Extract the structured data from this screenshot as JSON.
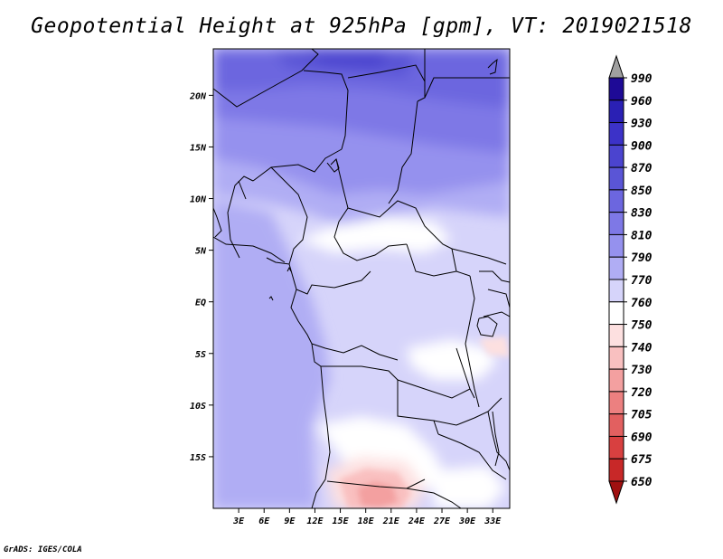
{
  "title": "Geopotential Height at 925hPa [gpm], VT: 2019021518",
  "credit": "GrADS: IGES/COLA",
  "map": {
    "lon_ticks": [
      "3E",
      "6E",
      "9E",
      "12E",
      "15E",
      "18E",
      "21E",
      "24E",
      "27E",
      "30E",
      "33E"
    ],
    "lon_values": [
      3,
      6,
      9,
      12,
      15,
      18,
      21,
      24,
      27,
      30,
      33
    ],
    "lat_ticks": [
      "20N",
      "15N",
      "10N",
      "5N",
      "EQ",
      "5S",
      "10S",
      "15S"
    ],
    "lat_values": [
      20,
      15,
      10,
      5,
      0,
      -5,
      -10,
      -15
    ],
    "lon_range": [
      0,
      35
    ],
    "lat_range": [
      -20,
      24.5
    ]
  },
  "colorbar": {
    "labels": [
      "990",
      "960",
      "930",
      "900",
      "870",
      "850",
      "830",
      "810",
      "790",
      "770",
      "760",
      "750",
      "740",
      "730",
      "720",
      "705",
      "690",
      "675",
      "650"
    ],
    "colors": [
      "#1e0a96",
      "#2a20b4",
      "#3c32c8",
      "#4b44cf",
      "#5a55d6",
      "#6c66df",
      "#7e78e6",
      "#9591ee",
      "#b0adf4",
      "#d6d4fa",
      "#ffffff",
      "#fde0e0",
      "#f9c0c0",
      "#f3a0a0",
      "#ec8080",
      "#e26060",
      "#d84040",
      "#c82828",
      "#b41414"
    ],
    "top_color": "#a0a0a0",
    "bottom_color": "#a01010"
  }
}
